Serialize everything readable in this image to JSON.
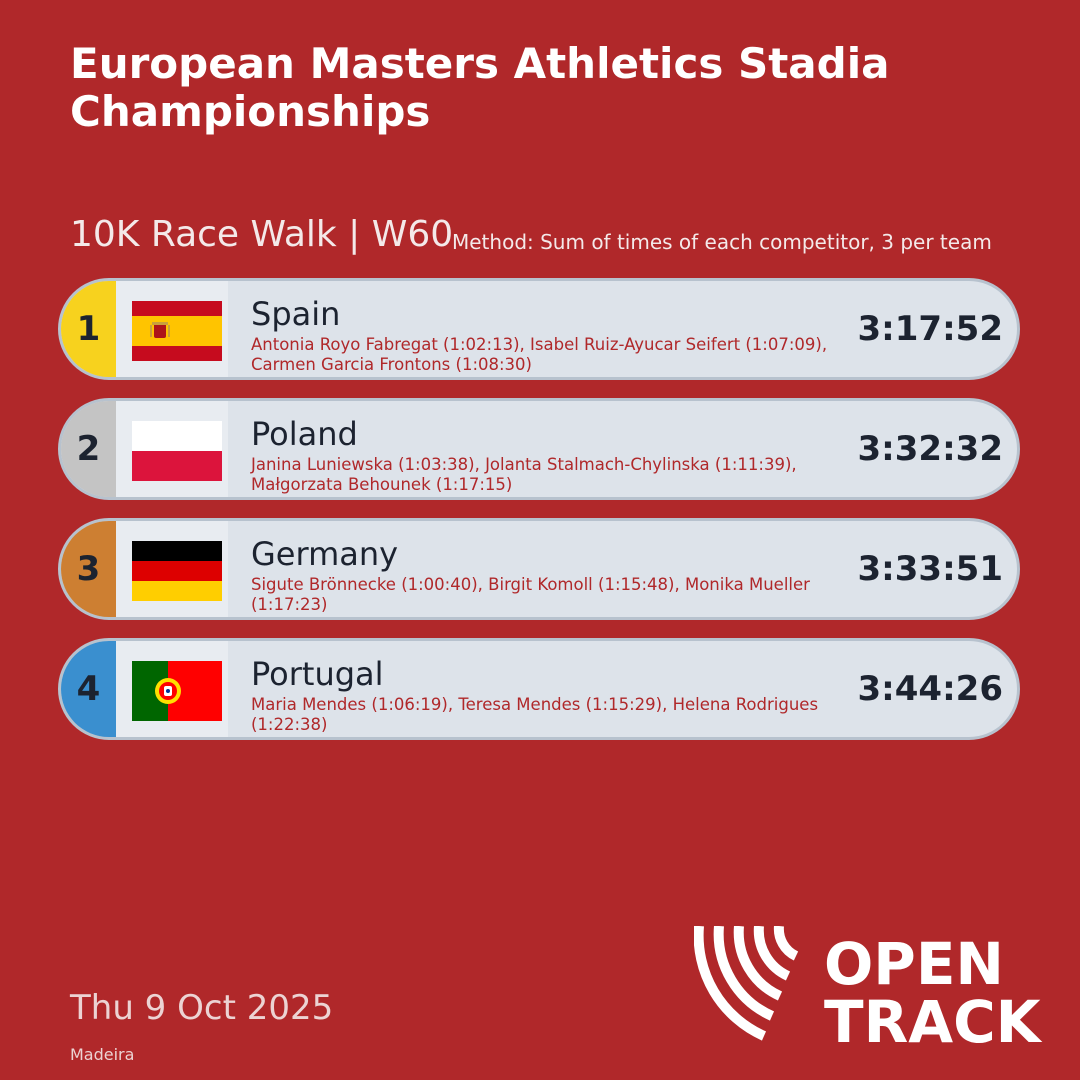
{
  "header": {
    "title": "European Masters Athletics Stadia Championships",
    "event": "10K Race Walk | W60",
    "method": "Method: Sum of times of each competitor, 3 per team"
  },
  "results": [
    {
      "rank": "1",
      "rank_color": "#F7D21E",
      "country": "Spain",
      "flag": "spain-flag",
      "members": "Antonia Royo Fabregat (1:02:13), Isabel Ruiz-Ayucar Seifert (1:07:09), Carmen Garcia Frontons (1:08:30)",
      "total": "3:17:52"
    },
    {
      "rank": "2",
      "rank_color": "#C4C4C4",
      "country": "Poland",
      "flag": "poland-flag",
      "members": "Janina Luniewska (1:03:38), Jolanta Stalmach-Chylinska (1:11:39), Małgorzata Behounek (1:17:15)",
      "total": "3:32:32"
    },
    {
      "rank": "3",
      "rank_color": "#CD7F32",
      "country": "Germany",
      "flag": "germany-flag",
      "members": "Sigute Brönnecke (1:00:40), Birgit Komoll (1:15:48), Monika Mueller (1:17:23)",
      "total": "3:33:51"
    },
    {
      "rank": "4",
      "rank_color": "#3A8FCF",
      "country": "Portugal",
      "flag": "portugal-flag",
      "members": "Maria Mendes (1:06:19), Teresa Mendes (1:15:29), Helena Rodrigues (1:22:38)",
      "total": "3:44:26"
    }
  ],
  "footer": {
    "date": "Thu 9 Oct 2025",
    "venue": "Madeira",
    "logo_line1": "OPEN",
    "logo_line2": "TRACK"
  },
  "colors": {
    "background": "#B0282A",
    "card": "#DDE3EA",
    "card_border": "#B7C2CE"
  }
}
